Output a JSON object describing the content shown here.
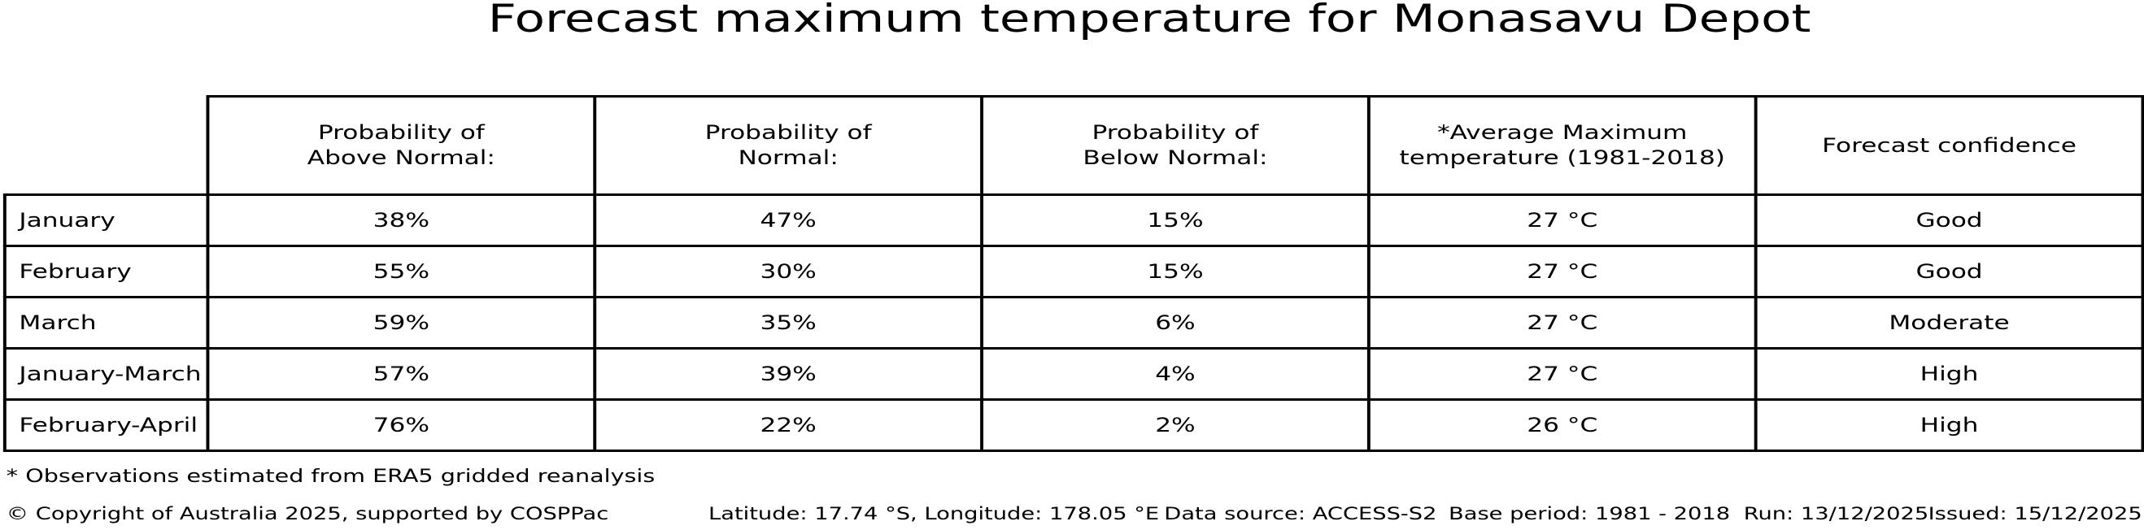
{
  "title": "Forecast maximum temperature for Monasavu Depot",
  "table": {
    "headers": {
      "above": "Probability of\nAbove Normal:",
      "normal": "Probability of\nNormal:",
      "below": "Probability of\nBelow Normal:",
      "avg_temp": "*Average Maximum\ntemperature (1981-2018)",
      "confidence": "Forecast confidence"
    },
    "rows": [
      {
        "label": "January",
        "above": "38%",
        "normal": "47%",
        "below": "15%",
        "avg_temp": "27 °C",
        "confidence": "Good"
      },
      {
        "label": "February",
        "above": "55%",
        "normal": "30%",
        "below": "15%",
        "avg_temp": "27 °C",
        "confidence": "Good"
      },
      {
        "label": "March",
        "above": "59%",
        "normal": "35%",
        "below": "6%",
        "avg_temp": "27 °C",
        "confidence": "Moderate"
      },
      {
        "label": "January-March",
        "above": "57%",
        "normal": "39%",
        "below": "4%",
        "avg_temp": "27 °C",
        "confidence": "High"
      },
      {
        "label": "February-April",
        "above": "76%",
        "normal": "22%",
        "below": "2%",
        "avg_temp": "26 °C",
        "confidence": "High"
      }
    ]
  },
  "footnote": "* Observations estimated from ERA5 gridded reanalysis",
  "footer": {
    "copyright": "© Copyright of Australia 2025, supported by COSPPac",
    "location": "Latitude: 17.74 °S, Longitude: 178.05 °E",
    "data_source": "Data source: ACCESS-S2",
    "base_period": "Base period: 1981 - 2018",
    "run": "Run: 13/12/2025",
    "issued": "Issued: 15/12/2025"
  },
  "colors": {
    "text": "#000000",
    "background": "#ffffff",
    "border": "#000000"
  },
  "chart_data": {
    "type": "table",
    "title": "Forecast maximum temperature for Monasavu Depot",
    "columns": [
      "",
      "Probability of Above Normal:",
      "Probability of Normal:",
      "Probability of Below Normal:",
      "*Average Maximum temperature (1981-2018)",
      "Forecast confidence"
    ],
    "rows": [
      [
        "January",
        "38%",
        "47%",
        "15%",
        "27 °C",
        "Good"
      ],
      [
        "February",
        "55%",
        "30%",
        "15%",
        "27 °C",
        "Good"
      ],
      [
        "March",
        "59%",
        "35%",
        "6%",
        "27 °C",
        "Moderate"
      ],
      [
        "January-March",
        "57%",
        "39%",
        "4%",
        "27 °C",
        "High"
      ],
      [
        "February-April",
        "76%",
        "22%",
        "2%",
        "26 °C",
        "High"
      ]
    ],
    "probabilities_pct": {
      "above_normal": [
        38,
        55,
        59,
        57,
        76
      ],
      "normal": [
        47,
        30,
        35,
        39,
        22
      ],
      "below_normal": [
        15,
        15,
        6,
        4,
        2
      ]
    },
    "average_max_temp_c": [
      27,
      27,
      27,
      27,
      26
    ],
    "forecast_confidence": [
      "Good",
      "Good",
      "Moderate",
      "High",
      "High"
    ],
    "periods": [
      "January",
      "February",
      "March",
      "January-March",
      "February-April"
    ]
  }
}
